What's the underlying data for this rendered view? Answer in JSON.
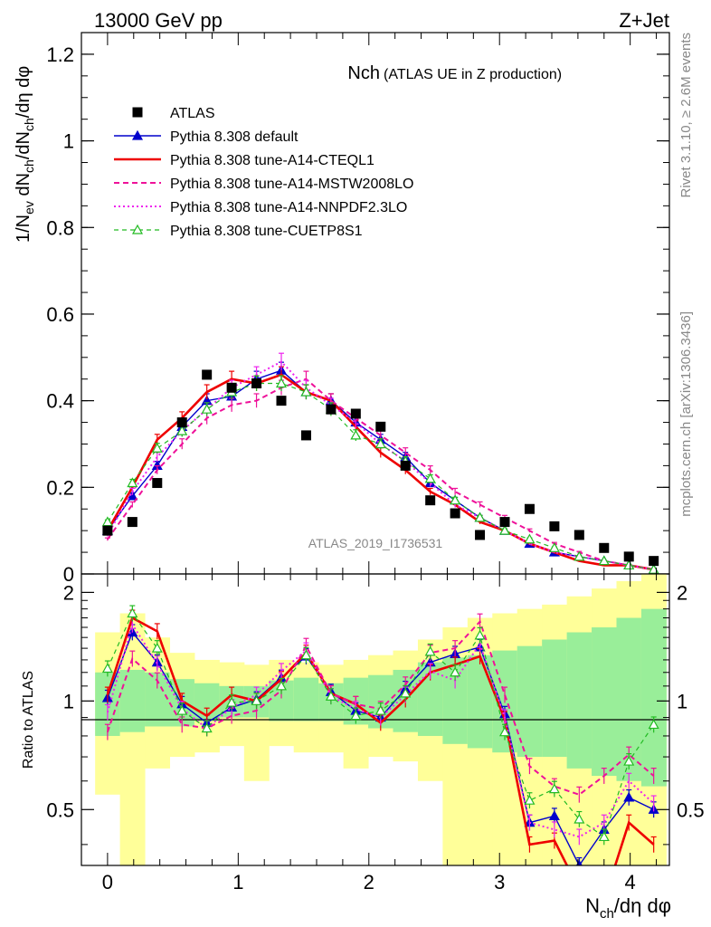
{
  "header": {
    "left": "13000 GeV pp",
    "right": "Z+Jet",
    "side_top": "Rivet 3.1.10, ≥ 2.6M events",
    "side_bottom": "mcplots.cern.ch [arXiv:1306.3436]"
  },
  "colors": {
    "atlas": "#000000",
    "default": "#0000cc",
    "cteql1": "#ee0000",
    "mstw": "#ee1199",
    "nnpdf": "#ee22ee",
    "cuetp8s1": "#22bb22",
    "band_inner": "#99ee99",
    "band_outer": "#ffff99"
  },
  "chart_data": [
    {
      "type": "line",
      "title": "Nch",
      "subtitle": "(ATLAS UE in Z production)",
      "watermark": "ATLAS_2019_I1736531",
      "ylabel": "1/N_ev dN_ch/dN_ch/dη dφ",
      "ylabel_parts": {
        "a": "1/N",
        "a_sub": "ev",
        "b": " dN",
        "b_sub": "ch",
        "c": "/dN",
        "c_sub": "ch",
        "d": "/dη dφ"
      },
      "xlim": [
        -0.2,
        4.3
      ],
      "ylim": [
        0,
        1.25
      ],
      "yticks": [
        0,
        0.2,
        0.4,
        0.6,
        0.8,
        1,
        1.2
      ],
      "ytick_labels": [
        "0",
        "0.2",
        "0.4",
        "0.6",
        "0.8",
        "1",
        "1.2"
      ],
      "x": [
        0.0,
        0.19,
        0.38,
        0.57,
        0.76,
        0.95,
        1.14,
        1.33,
        1.52,
        1.71,
        1.9,
        2.09,
        2.28,
        2.47,
        2.66,
        2.85,
        3.04,
        3.23,
        3.42,
        3.61,
        3.8,
        3.99,
        4.18
      ],
      "series": [
        {
          "name": "ATLAS",
          "key": "atlas",
          "style": "square",
          "values": [
            0.1,
            0.12,
            0.21,
            0.35,
            0.46,
            0.43,
            0.44,
            0.4,
            0.32,
            0.38,
            0.37,
            0.34,
            0.25,
            0.17,
            0.14,
            0.09,
            0.12,
            0.15,
            0.11,
            0.09,
            0.06,
            0.04,
            0.03
          ]
        },
        {
          "name": "Pythia 8.308 default",
          "key": "default",
          "style": "line-triangle",
          "values": [
            0.1,
            0.18,
            0.25,
            0.34,
            0.4,
            0.41,
            0.45,
            0.47,
            0.42,
            0.4,
            0.35,
            0.31,
            0.27,
            0.21,
            0.17,
            0.13,
            0.1,
            0.07,
            0.05,
            0.04,
            0.03,
            0.02,
            0.01
          ]
        },
        {
          "name": "Pythia 8.308 tune-A14-CTEQL1",
          "key": "cteql1",
          "style": "line-thick",
          "values": [
            0.1,
            0.2,
            0.31,
            0.36,
            0.42,
            0.45,
            0.44,
            0.46,
            0.42,
            0.4,
            0.34,
            0.28,
            0.24,
            0.19,
            0.16,
            0.12,
            0.1,
            0.07,
            0.05,
            0.03,
            0.02,
            0.02,
            0.01
          ]
        },
        {
          "name": "Pythia 8.308 tune-A14-MSTW2008LO",
          "key": "mstw",
          "style": "dashed",
          "values": [
            0.08,
            0.16,
            0.24,
            0.3,
            0.36,
            0.39,
            0.4,
            0.43,
            0.45,
            0.4,
            0.36,
            0.32,
            0.28,
            0.24,
            0.19,
            0.16,
            0.13,
            0.1,
            0.07,
            0.05,
            0.03,
            0.02,
            0.01
          ]
        },
        {
          "name": "Pythia 8.308 tune-A14-NNPDF2.3LO",
          "key": "nnpdf",
          "style": "dotted",
          "values": [
            0.09,
            0.19,
            0.27,
            0.33,
            0.38,
            0.43,
            0.46,
            0.49,
            0.43,
            0.39,
            0.35,
            0.3,
            0.26,
            0.21,
            0.16,
            0.13,
            0.1,
            0.07,
            0.05,
            0.04,
            0.03,
            0.02,
            0.01
          ]
        },
        {
          "name": "Pythia 8.308 tune-CUETP8S1",
          "key": "cuetp8s1",
          "style": "dashed-triangle-open",
          "values": [
            0.12,
            0.21,
            0.29,
            0.33,
            0.38,
            0.42,
            0.44,
            0.44,
            0.42,
            0.38,
            0.32,
            0.3,
            0.26,
            0.22,
            0.17,
            0.13,
            0.1,
            0.08,
            0.06,
            0.04,
            0.03,
            0.02,
            0.01
          ]
        }
      ]
    },
    {
      "type": "line",
      "title": "Ratio to ATLAS",
      "ylabel": "Ratio to ATLAS",
      "xlabel": "N_ch/dη dφ",
      "xlabel_parts": {
        "a": "N",
        "a_sub": "ch",
        "b": "/dη dφ"
      },
      "xlim": [
        -0.2,
        4.3
      ],
      "ylim": [
        0.35,
        2.25
      ],
      "xticks": [
        0,
        1,
        2,
        3,
        4
      ],
      "xtick_labels": [
        "0",
        "1",
        "2",
        "3",
        "4"
      ],
      "yticks": [
        0.5,
        1,
        2
      ],
      "ytick_labels": [
        "0.5",
        "1",
        "2"
      ],
      "reference": 1,
      "x": [
        0.0,
        0.19,
        0.38,
        0.57,
        0.76,
        0.95,
        1.14,
        1.33,
        1.52,
        1.71,
        1.9,
        2.09,
        2.28,
        2.47,
        2.66,
        2.85,
        3.04,
        3.23,
        3.42,
        3.61,
        3.8,
        3.99,
        4.18
      ],
      "band_inner": [
        [
          0.8,
          1.2
        ],
        [
          0.82,
          1.22
        ],
        [
          0.85,
          1.2
        ],
        [
          0.85,
          1.15
        ],
        [
          0.88,
          1.12
        ],
        [
          0.9,
          1.1
        ],
        [
          0.9,
          1.1
        ],
        [
          0.88,
          1.14
        ],
        [
          0.88,
          1.16
        ],
        [
          0.88,
          1.12
        ],
        [
          0.86,
          1.16
        ],
        [
          0.84,
          1.18
        ],
        [
          0.82,
          1.22
        ],
        [
          0.8,
          1.28
        ],
        [
          0.76,
          1.32
        ],
        [
          0.74,
          1.34
        ],
        [
          0.72,
          1.38
        ],
        [
          0.7,
          1.42
        ],
        [
          0.7,
          1.48
        ],
        [
          0.65,
          1.55
        ],
        [
          0.62,
          1.6
        ],
        [
          0.6,
          1.7
        ],
        [
          0.58,
          1.8
        ]
      ],
      "band_outer": [
        [
          0.55,
          1.55
        ],
        [
          0.3,
          1.75
        ],
        [
          0.65,
          1.5
        ],
        [
          0.7,
          1.36
        ],
        [
          0.72,
          1.3
        ],
        [
          0.75,
          1.28
        ],
        [
          0.6,
          1.26
        ],
        [
          0.75,
          1.3
        ],
        [
          0.72,
          1.28
        ],
        [
          0.72,
          1.26
        ],
        [
          0.65,
          1.3
        ],
        [
          0.7,
          1.34
        ],
        [
          0.68,
          1.38
        ],
        [
          0.6,
          1.48
        ],
        [
          0.35,
          1.6
        ],
        [
          0.35,
          1.7
        ],
        [
          0.35,
          1.75
        ],
        [
          0.35,
          1.8
        ],
        [
          0.35,
          1.85
        ],
        [
          0.35,
          1.95
        ],
        [
          0.35,
          2.05
        ],
        [
          0.35,
          2.15
        ],
        [
          0.35,
          2.25
        ]
      ],
      "series": [
        {
          "name": "Pythia 8.308 default",
          "key": "default",
          "style": "line-triangle",
          "values": [
            1.02,
            1.55,
            1.28,
            0.98,
            0.87,
            0.96,
            1.01,
            1.16,
            1.33,
            1.06,
            0.94,
            0.9,
            1.08,
            1.28,
            1.35,
            1.41,
            0.92,
            0.46,
            0.48,
            0.35,
            0.44,
            0.54,
            0.5
          ]
        },
        {
          "name": "Pythia 8.308 tune-A14-CTEQL1",
          "key": "cteql1",
          "style": "line-thick",
          "values": [
            1.04,
            1.7,
            1.56,
            1.0,
            0.91,
            1.04,
            1.0,
            1.15,
            1.36,
            1.05,
            0.98,
            0.87,
            1.01,
            1.2,
            1.26,
            1.33,
            0.89,
            0.4,
            0.41,
            0.3,
            0.28,
            0.46,
            0.4
          ]
        },
        {
          "name": "Pythia 8.308 tune-A14-MSTW2008LO",
          "key": "mstw",
          "style": "dashed",
          "values": [
            0.82,
            1.31,
            1.14,
            0.86,
            0.84,
            0.91,
            0.94,
            1.07,
            1.42,
            1.05,
            0.98,
            0.95,
            1.11,
            1.36,
            1.4,
            1.66,
            1.04,
            0.66,
            0.58,
            0.55,
            0.62,
            0.71,
            0.62
          ]
        },
        {
          "name": "Pythia 8.308 tune-A14-NNPDF2.3LO",
          "key": "nnpdf",
          "style": "dotted",
          "values": [
            0.93,
            1.63,
            1.27,
            0.95,
            0.84,
            0.96,
            1.04,
            1.21,
            1.38,
            1.03,
            0.95,
            0.9,
            1.04,
            1.21,
            1.14,
            1.44,
            0.9,
            0.46,
            0.44,
            0.42,
            0.46,
            0.6,
            0.52
          ]
        },
        {
          "name": "Pythia 8.308 tune-CUETP8S1",
          "key": "cuetp8s1",
          "style": "dashed-triangle-open",
          "values": [
            1.23,
            1.75,
            1.4,
            0.94,
            0.84,
            0.99,
            1.0,
            1.1,
            1.34,
            1.03,
            0.91,
            0.94,
            1.05,
            1.37,
            1.2,
            1.52,
            0.82,
            0.53,
            0.57,
            0.47,
            0.42,
            0.68,
            0.86
          ]
        }
      ]
    }
  ]
}
